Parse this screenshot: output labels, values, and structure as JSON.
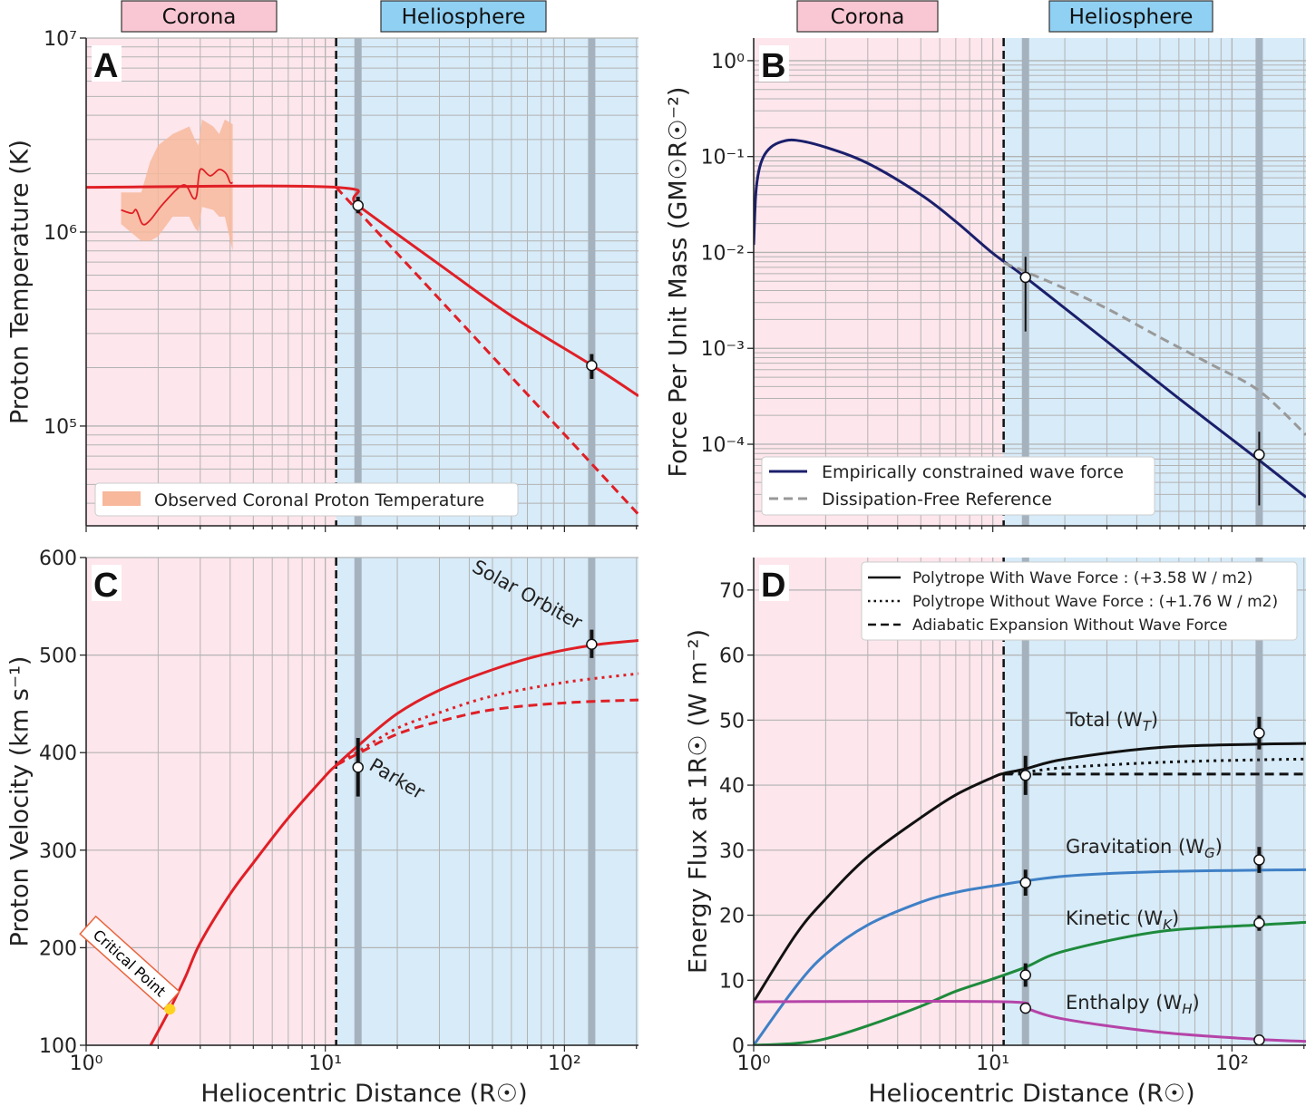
{
  "banners": {
    "corona": "Corona",
    "heliosphere": "Heliosphere",
    "corona_color": "#f9c6d3",
    "heliosphere_color": "#8fd0f3"
  },
  "regions": {
    "boundary_x": 11.1,
    "corona_bg": "#fde6ec",
    "heliosphere_bg": "#d7ebf8",
    "spacecraft_markers_x": [
      13.7,
      130
    ],
    "marker_color": "#a5b2be"
  },
  "chart_data": [
    {
      "panel": "A",
      "type": "line",
      "ylabel": "Proton Temperature (K)",
      "xlabel": "",
      "xscale": "log",
      "yscale": "log",
      "xlim": [
        1,
        204
      ],
      "ylim": [
        30600,
        10000000
      ],
      "grid": true,
      "yticks": [
        100000,
        1000000,
        10000000
      ],
      "yticklabels": [
        "10⁵",
        "10⁶",
        "10⁷"
      ],
      "series": [
        {
          "style": "solid",
          "color": "#e01f26",
          "x": [
            1,
            11.1,
            13.7,
            30,
            60,
            130,
            204
          ],
          "y": [
            1700000,
            1700000,
            1370000,
            680000,
            370000,
            206000,
            143000
          ]
        },
        {
          "style": "dashed",
          "color": "#e01f26",
          "x": [
            11.1,
            204
          ],
          "y": [
            1700000,
            35000
          ]
        },
        {
          "style": "solid-thin",
          "color": "#e01f26",
          "x": [
            1.4,
            1.55,
            1.62,
            1.72,
            1.85,
            2.1,
            2.55,
            2.8,
            2.9,
            3.0,
            3.3,
            3.6,
            3.85,
            4.0,
            4.1
          ],
          "y": [
            1300000,
            1250000,
            1300000,
            1100000,
            1150000,
            1400000,
            1750000,
            1500000,
            1550000,
            2100000,
            1950000,
            2100000,
            2000000,
            1800000,
            1800000
          ]
        }
      ],
      "band": {
        "name": "Observed Coronal Proton Temperature",
        "color": "#f7b89c",
        "x": [
          1.4,
          1.7,
          1.85,
          2.0,
          2.3,
          2.7,
          2.85,
          2.95,
          3.05,
          3.4,
          3.6,
          3.8,
          4.1
        ],
        "upper": [
          1600000,
          1600000,
          2300000,
          2800000,
          3200000,
          3500000,
          3000000,
          2800000,
          3800000,
          3500000,
          3200000,
          3800000,
          3600000
        ],
        "lower": [
          1100000,
          900000,
          900000,
          950000,
          1200000,
          1200000,
          1050000,
          1000000,
          1350000,
          1300000,
          1200000,
          1200000,
          800000
        ]
      },
      "points": [
        {
          "x": 13.7,
          "y": 1370000,
          "lo": 1250000,
          "hi": 1520000
        },
        {
          "x": 130,
          "y": 205000,
          "lo": 175000,
          "hi": 235000
        }
      ],
      "legend": {
        "placement": "bottom-left",
        "entries": [
          "Observed Coronal Proton Temperature"
        ]
      }
    },
    {
      "panel": "B",
      "type": "line",
      "ylabel": "Force Per Unit Mass (GM☉R☉⁻²)",
      "xlabel": "",
      "xscale": "log",
      "yscale": "log",
      "xlim": [
        1,
        204
      ],
      "ylim": [
        1.41e-05,
        1.72
      ],
      "grid": true,
      "yticks": [
        0.0001,
        0.001,
        0.01,
        0.1,
        1
      ],
      "yticklabels": [
        "10⁻⁴",
        "10⁻³",
        "10⁻²",
        "10⁻¹",
        "10⁰"
      ],
      "series": [
        {
          "name": "Empirically constrained wave force",
          "style": "solid",
          "color": "#1b1f6b",
          "x": [
            1.0,
            1.02,
            1.05,
            1.1,
            1.18,
            1.3,
            1.5,
            2,
            3,
            5,
            7,
            10,
            13.7,
            30,
            60,
            130,
            204
          ],
          "y": [
            0.012,
            0.04,
            0.07,
            0.1,
            0.125,
            0.142,
            0.148,
            0.125,
            0.085,
            0.04,
            0.021,
            0.0098,
            0.0055,
            0.00118,
            0.0003,
            6.8e-05,
            2.8e-05
          ]
        },
        {
          "name": "Dissipation-Free Reference",
          "style": "dashed",
          "color": "#999999",
          "x": [
            11.1,
            13.7,
            20,
            30,
            50,
            80,
            130,
            204
          ],
          "y": [
            0.0078,
            0.0063,
            0.0042,
            0.0026,
            0.0013,
            0.0007,
            0.00036,
            0.000125
          ]
        }
      ],
      "points": [
        {
          "x": 13.7,
          "y": 0.0055,
          "lo": 0.0015,
          "hi": 0.009
        },
        {
          "x": 130,
          "y": 7.8e-05,
          "lo": 2.3e-05,
          "hi": 0.000135
        }
      ],
      "legend": {
        "placement": "bottom-left",
        "entries": [
          "Empirically constrained wave force",
          "Dissipation-Free Reference"
        ]
      }
    },
    {
      "panel": "C",
      "type": "line",
      "ylabel": "Proton Velocity (km s⁻¹)",
      "xlabel": "Heliocentric Distance (R☉)",
      "xscale": "log",
      "yscale": "linear",
      "xlim": [
        1,
        204
      ],
      "ylim": [
        100,
        600
      ],
      "grid": true,
      "xticks": [
        1,
        10,
        100
      ],
      "xticklabels": [
        "10⁰",
        "10¹",
        "10²"
      ],
      "yticks": [
        100,
        200,
        300,
        400,
        500,
        600
      ],
      "yticklabels": [
        "100",
        "200",
        "300",
        "400",
        "500",
        "600"
      ],
      "series": [
        {
          "style": "solid",
          "color": "#e01f26",
          "x": [
            1.86,
            2.24,
            2.6,
            3,
            4,
            5,
            7,
            10,
            11.1,
            13.7,
            20,
            30,
            50,
            80,
            130,
            204
          ],
          "y": [
            100,
            137,
            170,
            205,
            255,
            287,
            333,
            376,
            387,
            407,
            440,
            464,
            485,
            500,
            510,
            515
          ]
        },
        {
          "style": "dotted",
          "color": "#e01f26",
          "x": [
            11.1,
            13.7,
            20,
            30,
            50,
            100,
            204
          ],
          "y": [
            387,
            401,
            425,
            441,
            458,
            472,
            481
          ]
        },
        {
          "style": "dashed",
          "color": "#e01f26",
          "x": [
            11.1,
            13.7,
            20,
            30,
            50,
            100,
            204
          ],
          "y": [
            387,
            399,
            419,
            432,
            444,
            451,
            454
          ]
        }
      ],
      "points": [
        {
          "x": 13.7,
          "y": 385,
          "lo": 355,
          "hi": 415
        },
        {
          "x": 130,
          "y": 511,
          "lo": 497,
          "hi": 526
        }
      ],
      "annotations": {
        "solar_orbiter": "Solar Orbiter",
        "parker": "Parker",
        "critical_point": "Critical Point",
        "critical_point_x": 2.24,
        "critical_point_y": 137,
        "critical_point_color": "#ffd21f"
      }
    },
    {
      "panel": "D",
      "type": "line",
      "ylabel": "Energy Flux at 1R☉ (W m⁻²)",
      "xlabel": "Heliocentric Distance (R☉)",
      "xscale": "log",
      "yscale": "linear",
      "xlim": [
        1,
        204
      ],
      "ylim": [
        0,
        75
      ],
      "grid": true,
      "xticks": [
        1,
        10,
        100
      ],
      "xticklabels": [
        "10⁰",
        "10¹",
        "10²"
      ],
      "yticks": [
        0,
        10,
        20,
        30,
        40,
        50,
        60,
        70
      ],
      "yticklabels": [
        "0",
        "10",
        "20",
        "30",
        "40",
        "50",
        "60",
        "70"
      ],
      "series": [
        {
          "label": {
            "text": "Total (W",
            "sub": "T",
            "close": ")"
          },
          "style": "solid",
          "color": "#111111",
          "x": [
            1,
            1.5,
            2,
            3,
            5,
            7,
            10,
            11.1,
            13.7,
            20,
            50,
            130,
            204
          ],
          "y": [
            6.7,
            17,
            22.5,
            29,
            35,
            38.5,
            41.2,
            41.8,
            42.5,
            44,
            45.8,
            46.3,
            46.4
          ]
        },
        {
          "style": "dotted",
          "color": "#111111",
          "x": [
            11.1,
            13.7,
            20,
            50,
            130,
            204
          ],
          "y": [
            41.8,
            42,
            42.7,
            43.5,
            43.9,
            44
          ]
        },
        {
          "style": "dashed",
          "color": "#111111",
          "x": [
            11.1,
            204
          ],
          "y": [
            41.7,
            41.7
          ]
        },
        {
          "label": {
            "text": "Gravitation (W",
            "sub": "G",
            "close": ")"
          },
          "style": "solid",
          "color": "#3f80c6",
          "x": [
            1,
            1.5,
            2,
            3,
            5,
            7,
            10,
            20,
            50,
            204
          ],
          "y": [
            0,
            9,
            14,
            18.5,
            22,
            23.5,
            24.5,
            26,
            26.7,
            27
          ]
        },
        {
          "label": {
            "text": "Kinetic (W",
            "sub": "K",
            "close": ")"
          },
          "style": "solid",
          "color": "#1e8a3c",
          "x": [
            1,
            1.5,
            2,
            3,
            5,
            7,
            10,
            13.7,
            20,
            50,
            130,
            204
          ],
          "y": [
            0,
            0.3,
            1,
            3,
            6,
            8.3,
            10.2,
            12,
            14.5,
            17.5,
            18.5,
            18.9
          ]
        },
        {
          "label": {
            "text": "Enthalpy (W",
            "sub": "H",
            "close": ")"
          },
          "style": "solid",
          "color": "#b544a8",
          "x": [
            1,
            11.1,
            13.7,
            20,
            50,
            130,
            204
          ],
          "y": [
            6.7,
            6.7,
            5.7,
            4,
            2,
            0.9,
            0.6
          ]
        }
      ],
      "points": [
        {
          "x": 13.7,
          "y": 41.5,
          "lo": 38.5,
          "hi": 44.5
        },
        {
          "x": 130,
          "y": 48,
          "lo": 45.5,
          "hi": 50.5
        },
        {
          "x": 13.7,
          "y": 25,
          "lo": 23,
          "hi": 27
        },
        {
          "x": 130,
          "y": 28.5,
          "lo": 26.5,
          "hi": 30.5
        },
        {
          "x": 13.7,
          "y": 10.8,
          "lo": 9,
          "hi": 12.6
        },
        {
          "x": 130,
          "y": 18.8,
          "lo": 17.6,
          "hi": 20
        },
        {
          "x": 13.7,
          "y": 5.7,
          "lo": 5.2,
          "hi": 6.2
        },
        {
          "x": 130,
          "y": 0.8,
          "lo": 0.5,
          "hi": 1.1
        }
      ],
      "legend": {
        "placement": "top-right",
        "entries": [
          {
            "style": "solid",
            "text": "Polytrope With Wave Force : (+3.58 W / m2)"
          },
          {
            "style": "dotted",
            "text": "Polytrope Without Wave Force : (+1.76 W / m2)"
          },
          {
            "style": "dashed",
            "text": "Adiabatic Expansion Without Wave Force"
          }
        ]
      }
    }
  ]
}
